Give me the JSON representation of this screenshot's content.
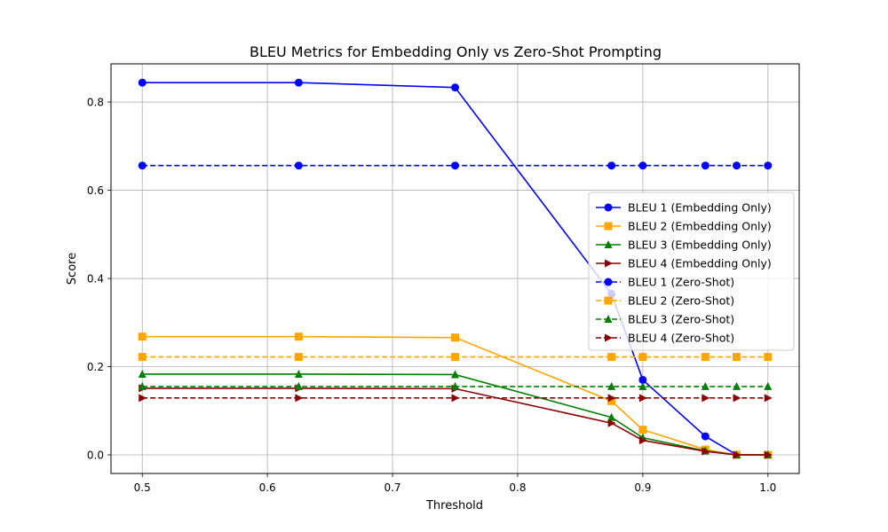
{
  "chart_data": {
    "type": "line",
    "title": "BLEU Metrics for Embedding Only vs Zero-Shot Prompting",
    "xlabel": "Threshold",
    "ylabel": "Score",
    "xlim": [
      0.475,
      1.025
    ],
    "ylim": [
      -0.0422,
      0.8866
    ],
    "x_ticks": [
      0.5,
      0.6,
      0.7,
      0.8,
      0.9,
      1.0
    ],
    "x_tick_labels": [
      "0.5",
      "0.6",
      "0.7",
      "0.8",
      "0.9",
      "1.0"
    ],
    "y_ticks": [
      0.0,
      0.2,
      0.4,
      0.6,
      0.8
    ],
    "y_tick_labels": [
      "0.0",
      "0.2",
      "0.4",
      "0.6",
      "0.8"
    ],
    "grid": true,
    "legend_position": "center-right",
    "x": [
      0.5,
      0.625,
      0.75,
      0.875,
      0.9,
      0.95,
      0.975,
      1.0
    ],
    "series": [
      {
        "name": "BLEU 1 (Embedding Only)",
        "color": "#0000ff",
        "marker": "circle",
        "dashed": false,
        "values": [
          0.844,
          0.844,
          0.833,
          0.365,
          0.17,
          0.042,
          0.0,
          0.0
        ]
      },
      {
        "name": "BLEU 2 (Embedding Only)",
        "color": "#ffa500",
        "marker": "square",
        "dashed": false,
        "values": [
          0.268,
          0.268,
          0.266,
          0.122,
          0.057,
          0.012,
          0.0,
          0.0
        ]
      },
      {
        "name": "BLEU 3 (Embedding Only)",
        "color": "#008000",
        "marker": "triangle-up",
        "dashed": false,
        "values": [
          0.183,
          0.183,
          0.182,
          0.085,
          0.039,
          0.009,
          0.0,
          0.0
        ]
      },
      {
        "name": "BLEU 4 (Embedding Only)",
        "color": "#8b0000",
        "marker": "triangle-right",
        "dashed": false,
        "values": [
          0.151,
          0.151,
          0.15,
          0.072,
          0.033,
          0.008,
          0.0,
          0.0
        ]
      },
      {
        "name": "BLEU 1 (Zero-Shot)",
        "color": "#0000ff",
        "marker": "circle",
        "dashed": true,
        "values": [
          0.656,
          0.656,
          0.656,
          0.656,
          0.656,
          0.656,
          0.656,
          0.656
        ]
      },
      {
        "name": "BLEU 2 (Zero-Shot)",
        "color": "#ffa500",
        "marker": "square",
        "dashed": true,
        "values": [
          0.222,
          0.222,
          0.222,
          0.222,
          0.222,
          0.222,
          0.222,
          0.222
        ]
      },
      {
        "name": "BLEU 3 (Zero-Shot)",
        "color": "#008000",
        "marker": "triangle-up",
        "dashed": true,
        "values": [
          0.155,
          0.155,
          0.155,
          0.155,
          0.155,
          0.155,
          0.155,
          0.155
        ]
      },
      {
        "name": "BLEU 4 (Zero-Shot)",
        "color": "#8b0000",
        "marker": "triangle-right",
        "dashed": true,
        "values": [
          0.129,
          0.129,
          0.129,
          0.129,
          0.129,
          0.129,
          0.129,
          0.129
        ]
      }
    ]
  }
}
